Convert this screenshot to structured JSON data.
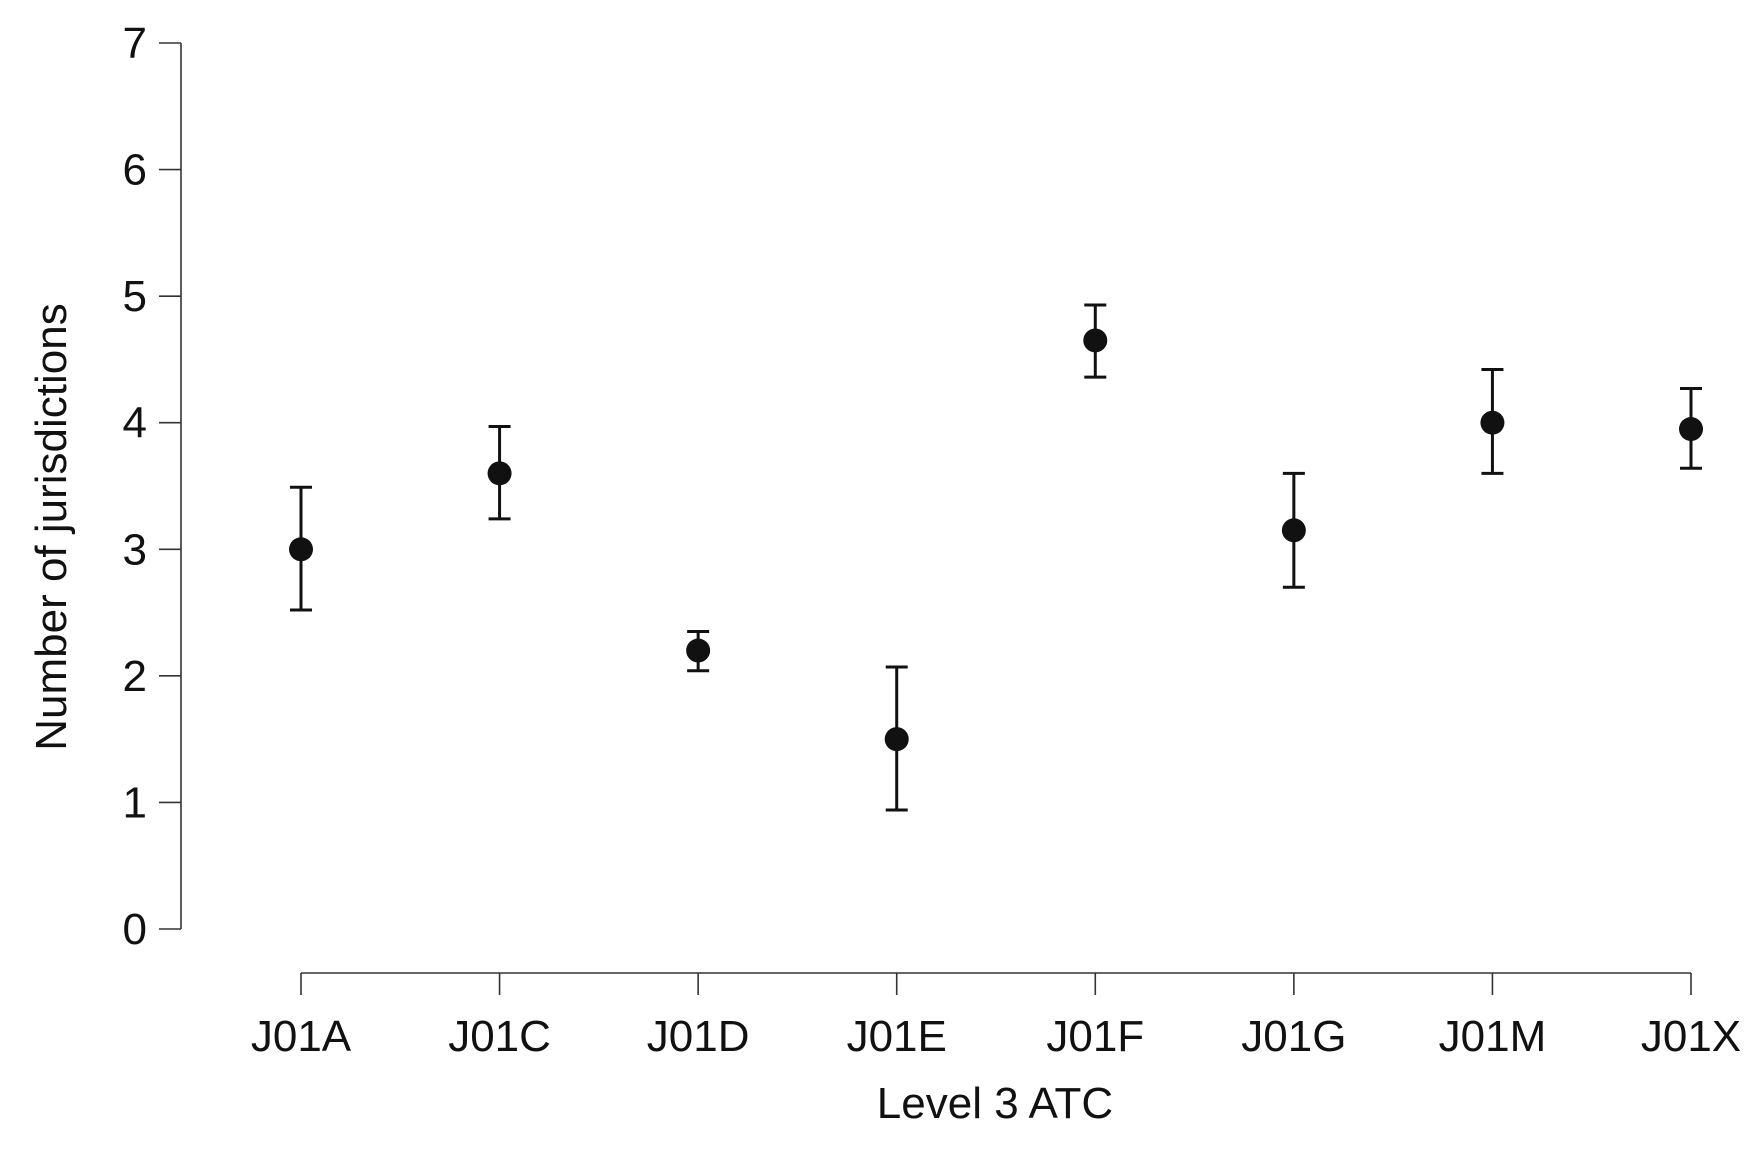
{
  "chart_data": {
    "type": "scatter",
    "title": "",
    "xlabel": "Level 3 ATC",
    "ylabel": "Number of jurisdictions",
    "categories": [
      "J01A",
      "J01C",
      "J01D",
      "J01E",
      "J01F",
      "J01G",
      "J01M",
      "J01X"
    ],
    "values": [
      3.0,
      3.6,
      2.2,
      1.5,
      4.65,
      3.15,
      4.0,
      3.95
    ],
    "error_low": [
      2.52,
      3.24,
      2.04,
      0.94,
      4.36,
      2.7,
      3.6,
      3.64
    ],
    "error_high": [
      3.49,
      3.97,
      2.35,
      2.07,
      4.93,
      3.6,
      4.42,
      4.27
    ],
    "ylim": [
      0,
      7
    ],
    "yticks": [
      0,
      1,
      2,
      3,
      4,
      5,
      6,
      7
    ],
    "grid": false,
    "legend": "none",
    "colors": {
      "marker": "#111111",
      "axis": "#333333",
      "text": "#111111"
    }
  }
}
